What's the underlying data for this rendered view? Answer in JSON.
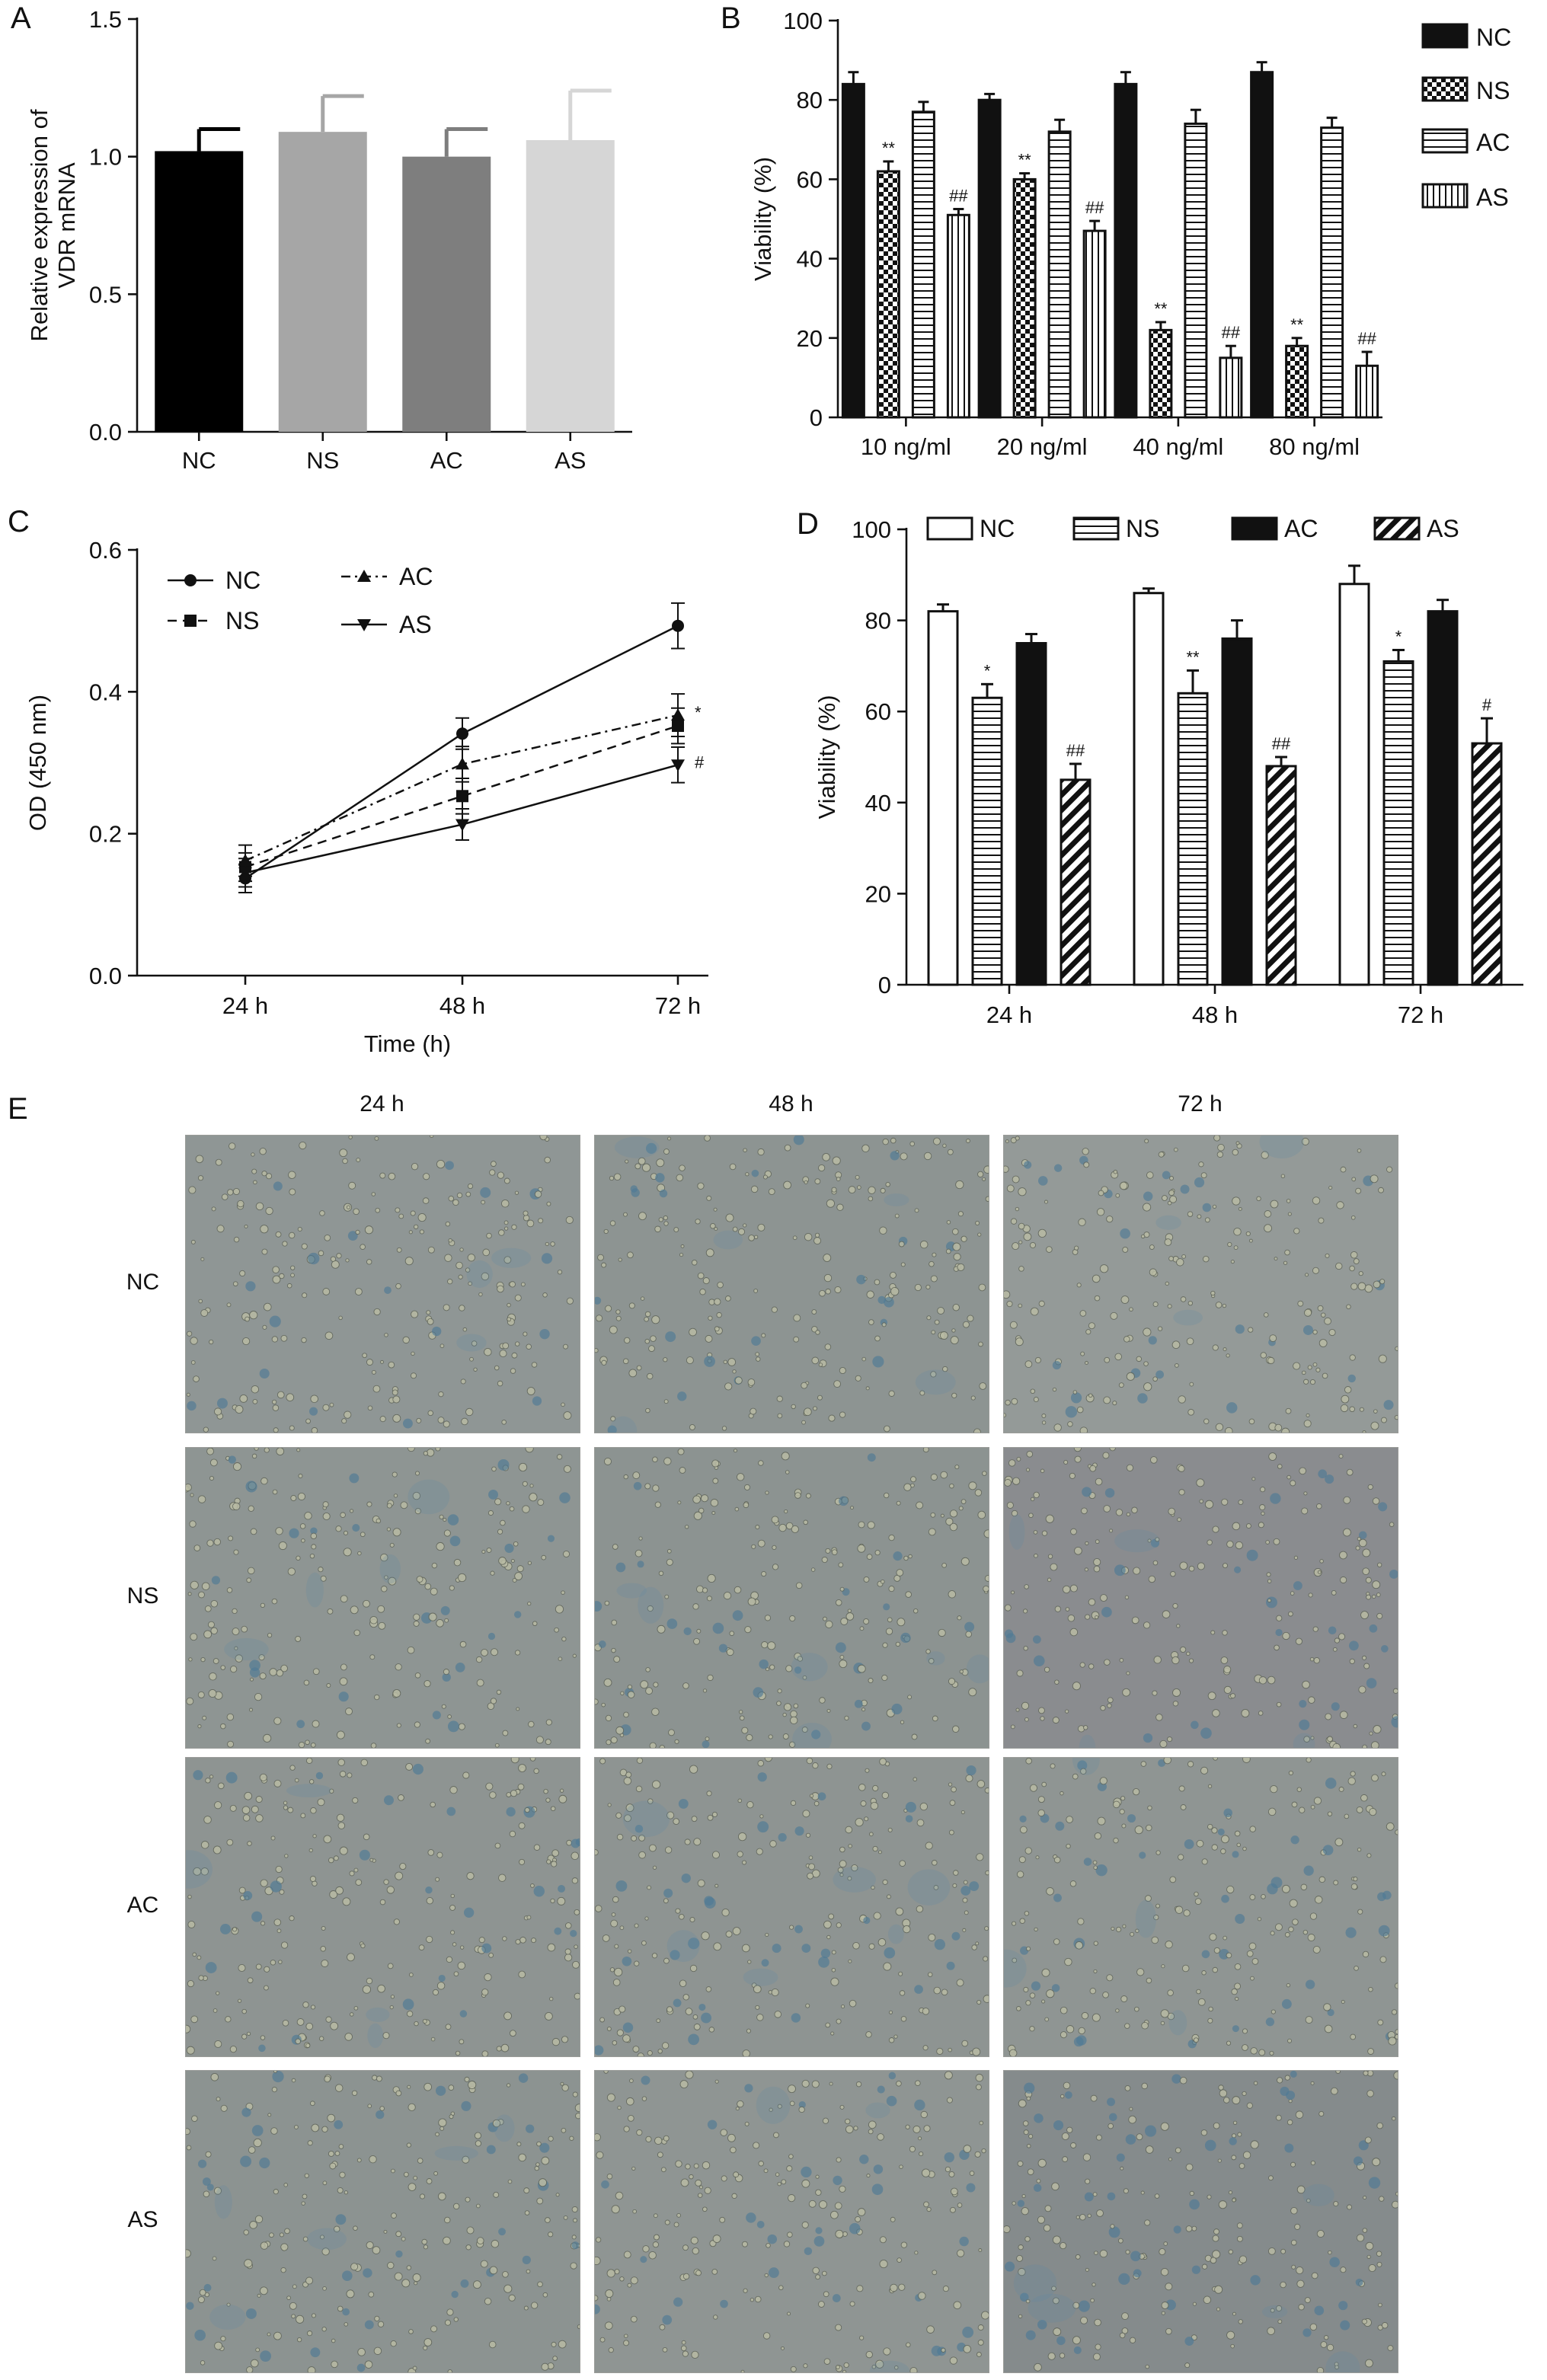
{
  "panels": {
    "a": "A",
    "b": "B",
    "c": "C",
    "d": "D",
    "e": "E"
  },
  "chart_data": [
    {
      "id": "A",
      "type": "bar",
      "ylabel_lines": [
        "Relative expression of",
        "VDR mRNA"
      ],
      "xlabel": "",
      "categories": [
        "NC",
        "NS",
        "AC",
        "AS"
      ],
      "values": [
        1.02,
        1.09,
        1.0,
        1.06
      ],
      "errors": [
        0.08,
        0.13,
        0.1,
        0.18
      ],
      "colors": [
        "#000000",
        "#a6a6a6",
        "#7e7e7e",
        "#d6d6d6"
      ],
      "ylim": [
        0,
        1.5
      ],
      "yticks": [
        0.0,
        0.5,
        1.0,
        1.5
      ],
      "ytick_labels": [
        "0.0",
        "0.5",
        "1.0",
        "1.5"
      ]
    },
    {
      "id": "B",
      "type": "bar",
      "ylabel": "Viability (%)",
      "categories": [
        "10 ng/ml",
        "20 ng/ml",
        "40 ng/ml",
        "80 ng/ml"
      ],
      "series": [
        {
          "name": "NC",
          "pattern": "solid",
          "values": [
            84,
            80,
            84,
            87
          ],
          "errors": [
            3,
            1.5,
            3,
            2.5
          ],
          "annotations": [
            "",
            "",
            "",
            ""
          ]
        },
        {
          "name": "NS",
          "pattern": "checker",
          "values": [
            62,
            60,
            22,
            18
          ],
          "errors": [
            2.5,
            1.5,
            2,
            2
          ],
          "annotations": [
            "**",
            "**",
            "**",
            "**"
          ]
        },
        {
          "name": "AC",
          "pattern": "hlines",
          "values": [
            77,
            72,
            74,
            73
          ],
          "errors": [
            2.5,
            3,
            3.5,
            2.5
          ],
          "annotations": [
            "",
            "",
            "",
            ""
          ]
        },
        {
          "name": "AS",
          "pattern": "vlines",
          "values": [
            51,
            47,
            15,
            13
          ],
          "errors": [
            1.5,
            2.5,
            3,
            3.5
          ],
          "annotations": [
            "##",
            "##",
            "##",
            "##"
          ]
        }
      ],
      "ylim": [
        0,
        100
      ],
      "yticks": [
        0,
        20,
        40,
        60,
        80,
        100
      ],
      "legend_position": "right"
    },
    {
      "id": "C",
      "type": "line",
      "ylabel": "OD (450 nm)",
      "xlabel": "Time (h)",
      "categories": [
        "24 h",
        "48 h",
        "72 h"
      ],
      "series": [
        {
          "name": "NC",
          "marker": "circle",
          "dash": "solid",
          "values": [
            0.137,
            0.341,
            0.493
          ],
          "errors": [
            0.02,
            0.022,
            0.032
          ],
          "annotation": ""
        },
        {
          "name": "NS",
          "marker": "square",
          "dash": "dashed",
          "values": [
            0.153,
            0.253,
            0.352
          ],
          "errors": [
            0.02,
            0.025,
            0.025
          ],
          "annotation": ""
        },
        {
          "name": "AC",
          "marker": "triangle-up",
          "dash": "dashdot",
          "values": [
            0.162,
            0.298,
            0.367
          ],
          "errors": [
            0.022,
            0.025,
            0.03
          ],
          "annotation": "*"
        },
        {
          "name": "AS",
          "marker": "triangle-down",
          "dash": "solid",
          "values": [
            0.145,
            0.213,
            0.297
          ],
          "errors": [
            0.02,
            0.022,
            0.025
          ],
          "annotation": "#"
        }
      ],
      "ylim": [
        0,
        0.6
      ],
      "yticks": [
        0.0,
        0.2,
        0.4,
        0.6
      ],
      "ytick_labels": [
        "0.0",
        "0.2",
        "0.4",
        "0.6"
      ],
      "legend_position": "top-left"
    },
    {
      "id": "D",
      "type": "bar",
      "ylabel": "Viability (%)",
      "categories": [
        "24 h",
        "48 h",
        "72 h"
      ],
      "series": [
        {
          "name": "NC",
          "pattern": "white",
          "values": [
            82,
            86,
            88
          ],
          "errors": [
            1.5,
            1,
            4
          ],
          "annotations": [
            "",
            "",
            ""
          ]
        },
        {
          "name": "NS",
          "pattern": "hlines",
          "values": [
            63,
            64,
            71
          ],
          "errors": [
            3,
            5,
            2.5
          ],
          "annotations": [
            "*",
            "**",
            "*"
          ]
        },
        {
          "name": "AC",
          "pattern": "solid",
          "values": [
            75,
            76,
            82
          ],
          "errors": [
            2,
            4,
            2.5
          ],
          "annotations": [
            "",
            "",
            ""
          ]
        },
        {
          "name": "AS",
          "pattern": "diagonal",
          "values": [
            45,
            48,
            53
          ],
          "errors": [
            3.5,
            2,
            5.5
          ],
          "annotations": [
            "##",
            "##",
            "#"
          ]
        }
      ],
      "ylim": [
        0,
        100
      ],
      "yticks": [
        0,
        20,
        40,
        60,
        80,
        100
      ],
      "legend_position": "top"
    }
  ],
  "micrographs": {
    "columns": [
      "24 h",
      "48 h",
      "72 h"
    ],
    "rows": [
      "NC",
      "NS",
      "AC",
      "AS"
    ],
    "tints": [
      [
        "#8f9695",
        "#8d9492",
        "#949a98"
      ],
      [
        "#8e9593",
        "#8c9391",
        "#8a8c8f"
      ],
      [
        "#8e9492",
        "#8e9492",
        "#8f9593"
      ],
      [
        "#8c9391",
        "#8f9593",
        "#858b8c"
      ]
    ]
  }
}
